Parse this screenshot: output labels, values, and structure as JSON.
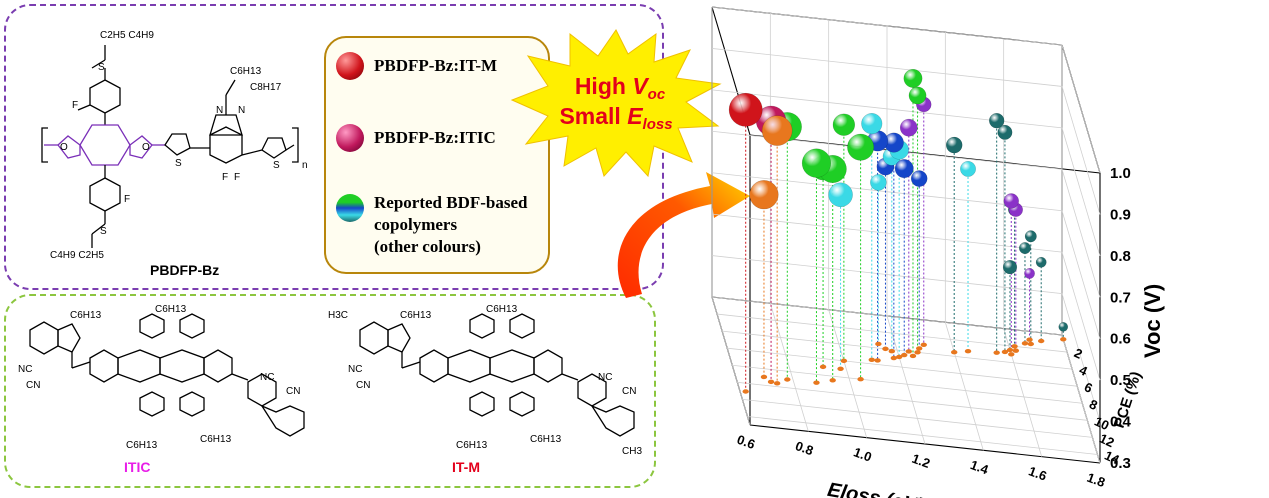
{
  "molecules": {
    "polymer_name": "PBDFP-Bz",
    "acceptor_1_name": "ITIC",
    "acceptor_2_name": "IT-M",
    "polymer_side_chain_top": "C2H5 C4H9",
    "polymer_side_chain_bottom": "C4H9 C2H5",
    "benzotriazole_chain_1": "C6H13",
    "benzotriazole_chain_2": "C8H17",
    "acceptor_chain": "C6H13",
    "methyl": "H3C",
    "methyl_2": "CH3",
    "subscript_n": "n"
  },
  "legend": {
    "items": [
      {
        "label": "PBDFP-Bz:IT-M",
        "color": "#d0141b"
      },
      {
        "label": "PBDFP-Bz:ITIC",
        "color": "#c0185c"
      },
      {
        "label_lines": [
          "Reported BDF-based",
          "copolymers",
          "(other colours)"
        ],
        "colors": [
          "#1fce25",
          "#1546c9",
          "#3ad9e6"
        ]
      }
    ]
  },
  "burst": {
    "line1_main": "High ",
    "line1_italic": "V",
    "line1_sub": "oc",
    "line2_main": "Small ",
    "line2_italic": "E",
    "line2_sub": "loss",
    "fill": "#ffef00",
    "text_color": "#e3001b"
  },
  "chart_data": {
    "type": "scatter",
    "dimensions": 3,
    "x_axis": {
      "label": "Eloss (eV)",
      "ticks": [
        "0.6",
        "0.8",
        "1.0",
        "1.2",
        "1.4",
        "1.6",
        "1.8"
      ],
      "range": [
        0.6,
        1.8
      ]
    },
    "y_axis": {
      "label": "PCE (%)",
      "ticks": [
        "2",
        "4",
        "6",
        "8",
        "10",
        "12",
        "14"
      ],
      "range": [
        0,
        15
      ]
    },
    "z_axis": {
      "label": "Voc (V)",
      "ticks": [
        "0.3",
        "0.4",
        "0.5",
        "0.6",
        "0.7",
        "0.8",
        "0.9",
        "1.0"
      ],
      "range": [
        0.3,
        1.0
      ]
    },
    "series": [
      {
        "name": "PBDFP-Bz:IT-M",
        "color": "#d0141b",
        "points": [
          {
            "eloss": 0.62,
            "pce": 11.0,
            "voc": 0.98
          }
        ]
      },
      {
        "name": "PBDFP-Bz:ITIC",
        "color": "#c0185c",
        "points": [
          {
            "eloss": 0.72,
            "pce": 9.5,
            "voc": 0.93
          }
        ]
      },
      {
        "name": "Reported BDF-based copolymers (other colours)",
        "color": "#1fce25",
        "points": [
          {
            "eloss": 0.78,
            "pce": 9.0,
            "voc": 0.91
          },
          {
            "eloss": 0.88,
            "pce": 9.0,
            "voc": 0.83
          },
          {
            "eloss": 0.94,
            "pce": 8.5,
            "voc": 0.81
          },
          {
            "eloss": 1.04,
            "pce": 8.0,
            "voc": 0.86
          },
          {
            "eloss": 0.92,
            "pce": 7.0,
            "voc": 0.78
          },
          {
            "eloss": 1.25,
            "pce": 4.5,
            "voc": 0.97
          },
          {
            "eloss": 1.27,
            "pce": 4.0,
            "voc": 0.92
          },
          {
            "eloss": 1.0,
            "pce": 6.0,
            "voc": 0.87
          }
        ]
      },
      {
        "name": "",
        "color": "#1546c9",
        "points": [
          {
            "eloss": 1.12,
            "pce": 5.5,
            "voc": 0.83
          },
          {
            "eloss": 1.18,
            "pce": 5.0,
            "voc": 0.82
          },
          {
            "eloss": 1.16,
            "pce": 4.0,
            "voc": 0.74
          },
          {
            "eloss": 1.22,
            "pce": 4.5,
            "voc": 0.75
          },
          {
            "eloss": 1.28,
            "pce": 3.5,
            "voc": 0.71
          }
        ]
      },
      {
        "name": "",
        "color": "#3ad9e6",
        "points": [
          {
            "eloss": 0.98,
            "pce": 7.0,
            "voc": 0.72
          },
          {
            "eloss": 1.1,
            "pce": 5.5,
            "voc": 0.87
          },
          {
            "eloss": 1.18,
            "pce": 4.2,
            "voc": 0.77
          },
          {
            "eloss": 1.14,
            "pce": 3.5,
            "voc": 0.69
          },
          {
            "eloss": 1.45,
            "pce": 3.2,
            "voc": 0.74
          },
          {
            "eloss": 1.2,
            "pce": 4.8,
            "voc": 0.8
          }
        ]
      },
      {
        "name": "",
        "color": "#8a32c8",
        "points": [
          {
            "eloss": 1.3,
            "pce": 3.0,
            "voc": 0.88
          },
          {
            "eloss": 1.24,
            "pce": 4.0,
            "voc": 0.84
          },
          {
            "eloss": 1.6,
            "pce": 3.0,
            "voc": 0.67
          },
          {
            "eloss": 1.62,
            "pce": 2.5,
            "voc": 0.64
          },
          {
            "eloss": 1.68,
            "pce": 1.0,
            "voc": 0.46
          }
        ]
      },
      {
        "name": "",
        "color": "#1d6b6b",
        "points": [
          {
            "eloss": 1.55,
            "pce": 3.0,
            "voc": 0.86
          },
          {
            "eloss": 1.58,
            "pce": 2.8,
            "voc": 0.83
          },
          {
            "eloss": 1.4,
            "pce": 3.5,
            "voc": 0.8
          },
          {
            "eloss": 1.62,
            "pce": 2.0,
            "voc": 0.63
          },
          {
            "eloss": 1.68,
            "pce": 1.5,
            "voc": 0.56
          },
          {
            "eloss": 1.66,
            "pce": 1.5,
            "voc": 0.53
          },
          {
            "eloss": 1.6,
            "pce": 2.5,
            "voc": 0.5
          },
          {
            "eloss": 1.72,
            "pce": 1.0,
            "voc": 0.49
          },
          {
            "eloss": 1.8,
            "pce": 0.5,
            "voc": 0.33
          }
        ]
      },
      {
        "name": "",
        "color": "#e8771e",
        "points": [
          {
            "eloss": 0.74,
            "pce": 9.6,
            "voc": 0.91
          },
          {
            "eloss": 0.7,
            "pce": 9.0,
            "voc": 0.74
          }
        ]
      }
    ],
    "grid": true,
    "projections": "orange dots on the floor with dotted drop lines"
  }
}
